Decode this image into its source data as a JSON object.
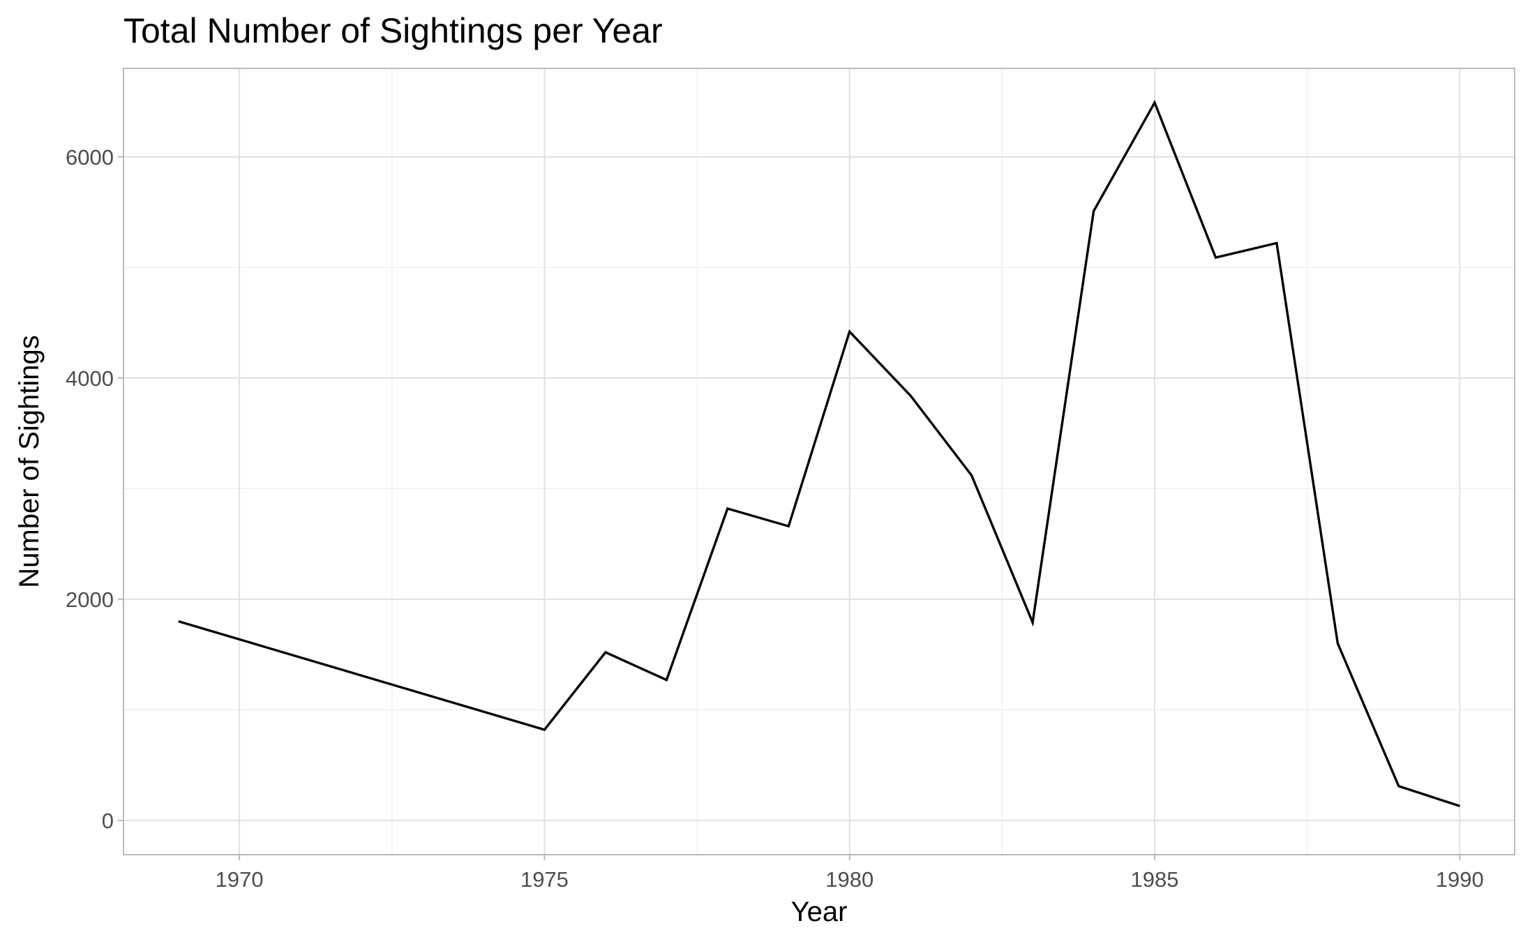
{
  "chart_data": {
    "type": "line",
    "title": "Total Number of Sightings per Year",
    "xlabel": "Year",
    "ylabel": "Number of Sightings",
    "x": [
      1969,
      1975,
      1976,
      1977,
      1978,
      1979,
      1980,
      1981,
      1982,
      1983,
      1984,
      1985,
      1986,
      1987,
      1988,
      1989,
      1990
    ],
    "series": [
      {
        "values": [
          1800,
          820,
          1520,
          1270,
          2820,
          2660,
          4420,
          3840,
          3120,
          1790,
          5510,
          6490,
          5090,
          5220,
          1600,
          310,
          130
        ]
      }
    ],
    "xlim": [
      1968.1,
      1990.9
    ],
    "ylim": [
      -310,
      6800
    ],
    "x_ticks": [
      1970,
      1975,
      1980,
      1985,
      1990
    ],
    "y_ticks": [
      0,
      2000,
      4000,
      6000
    ],
    "grid": true,
    "line_color": "#000000"
  }
}
